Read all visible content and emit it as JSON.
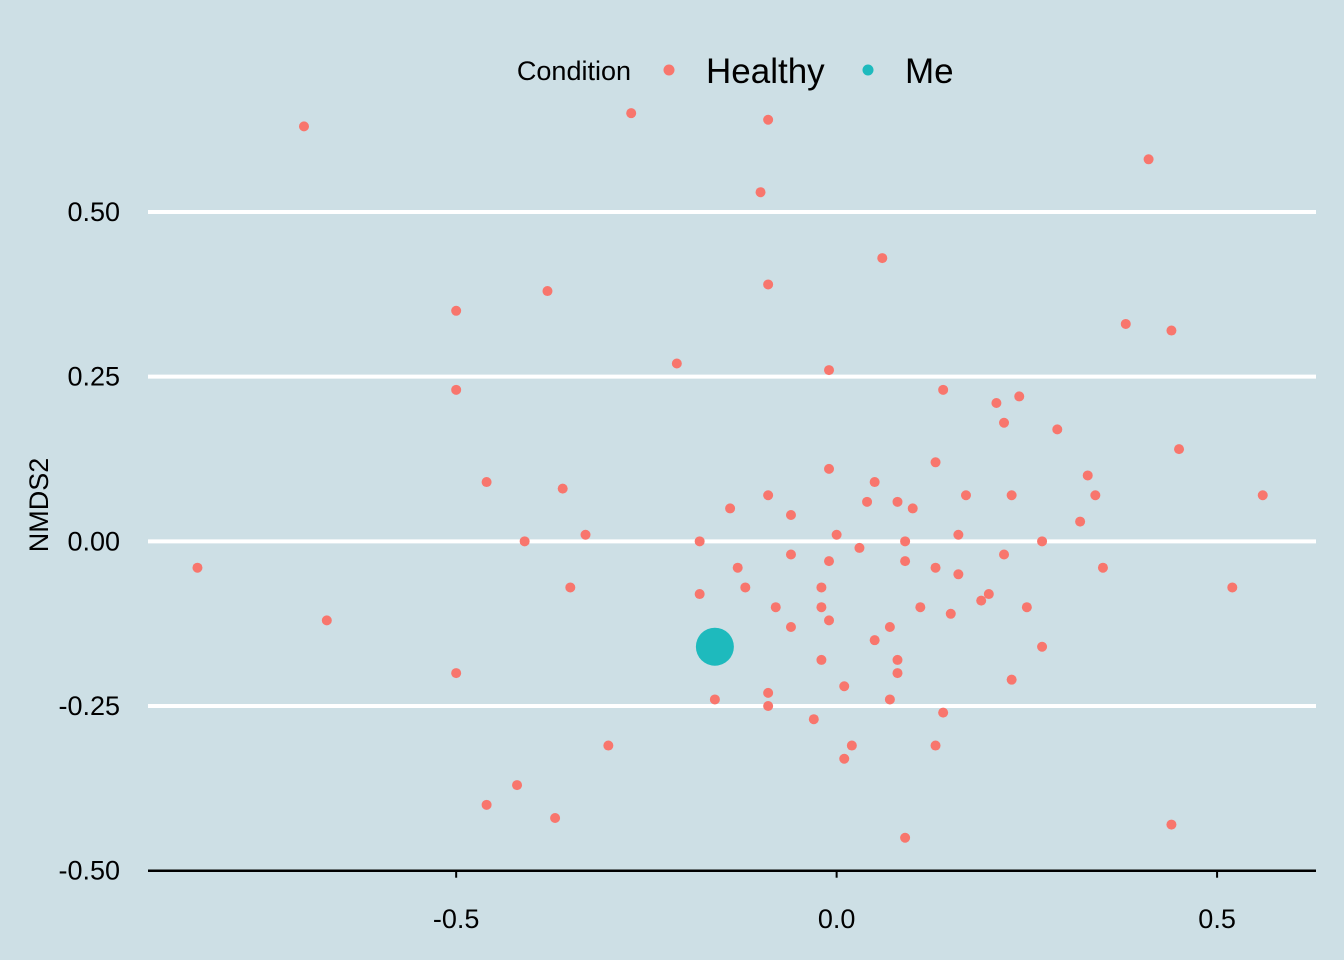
{
  "chart_data": {
    "type": "scatter",
    "title": "",
    "xlabel": "",
    "ylabel": "NMDS2",
    "xlim": [
      -0.905,
      0.63
    ],
    "ylim": [
      -0.505,
      0.67
    ],
    "x_ticks": [
      -0.5,
      0.0,
      0.5
    ],
    "x_tick_labels": [
      "-0.5",
      "0.0",
      "0.5"
    ],
    "y_ticks": [
      -0.5,
      -0.25,
      0.0,
      0.25,
      0.5
    ],
    "y_tick_labels": [
      "-0.50",
      "-0.25",
      "0.00",
      "0.25",
      "0.50"
    ],
    "grid": "horizontal-major",
    "legend": {
      "title": "Condition",
      "placement": "top"
    },
    "series": [
      {
        "name": "Healthy",
        "color": "#f8766d",
        "points": [
          [
            -0.7,
            0.63
          ],
          [
            -0.27,
            0.65
          ],
          [
            -0.09,
            0.64
          ],
          [
            -0.1,
            0.53
          ],
          [
            0.41,
            0.58
          ],
          [
            -0.09,
            0.39
          ],
          [
            0.06,
            0.43
          ],
          [
            -0.38,
            0.38
          ],
          [
            -0.5,
            0.35
          ],
          [
            0.38,
            0.33
          ],
          [
            0.44,
            0.32
          ],
          [
            -0.21,
            0.27
          ],
          [
            -0.01,
            0.26
          ],
          [
            -0.5,
            0.23
          ],
          [
            0.14,
            0.23
          ],
          [
            0.21,
            0.21
          ],
          [
            0.24,
            0.22
          ],
          [
            0.22,
            0.18
          ],
          [
            0.29,
            0.17
          ],
          [
            0.45,
            0.14
          ],
          [
            0.13,
            0.12
          ],
          [
            -0.01,
            0.11
          ],
          [
            0.33,
            0.1
          ],
          [
            -0.46,
            0.09
          ],
          [
            0.05,
            0.09
          ],
          [
            -0.36,
            0.08
          ],
          [
            -0.09,
            0.07
          ],
          [
            0.04,
            0.06
          ],
          [
            0.08,
            0.06
          ],
          [
            0.17,
            0.07
          ],
          [
            0.23,
            0.07
          ],
          [
            0.34,
            0.07
          ],
          [
            0.56,
            0.07
          ],
          [
            -0.14,
            0.05
          ],
          [
            -0.06,
            0.04
          ],
          [
            0.1,
            0.05
          ],
          [
            0.32,
            0.03
          ],
          [
            -0.33,
            0.01
          ],
          [
            0.0,
            0.01
          ],
          [
            0.16,
            0.01
          ],
          [
            -0.18,
            0.0
          ],
          [
            0.27,
            0.0
          ],
          [
            -0.41,
            0.0
          ],
          [
            0.03,
            -0.01
          ],
          [
            0.09,
            0.0
          ],
          [
            -0.06,
            -0.02
          ],
          [
            -0.01,
            -0.03
          ],
          [
            0.22,
            -0.02
          ],
          [
            0.09,
            -0.03
          ],
          [
            -0.13,
            -0.04
          ],
          [
            0.13,
            -0.04
          ],
          [
            0.35,
            -0.04
          ],
          [
            0.16,
            -0.05
          ],
          [
            0.52,
            -0.07
          ],
          [
            -0.35,
            -0.07
          ],
          [
            -0.12,
            -0.07
          ],
          [
            -0.02,
            -0.07
          ],
          [
            -0.18,
            -0.08
          ],
          [
            0.2,
            -0.08
          ],
          [
            -0.02,
            -0.1
          ],
          [
            0.19,
            -0.09
          ],
          [
            0.25,
            -0.1
          ],
          [
            -0.08,
            -0.1
          ],
          [
            0.11,
            -0.1
          ],
          [
            -0.67,
            -0.12
          ],
          [
            0.15,
            -0.11
          ],
          [
            -0.01,
            -0.12
          ],
          [
            -0.06,
            -0.13
          ],
          [
            0.07,
            -0.13
          ],
          [
            0.05,
            -0.15
          ],
          [
            0.27,
            -0.16
          ],
          [
            -0.02,
            -0.18
          ],
          [
            0.08,
            -0.18
          ],
          [
            0.08,
            -0.2
          ],
          [
            -0.5,
            -0.2
          ],
          [
            0.23,
            -0.21
          ],
          [
            0.01,
            -0.22
          ],
          [
            -0.09,
            -0.23
          ],
          [
            -0.16,
            -0.24
          ],
          [
            0.07,
            -0.24
          ],
          [
            -0.09,
            -0.25
          ],
          [
            0.14,
            -0.26
          ],
          [
            -0.03,
            -0.27
          ],
          [
            -0.3,
            -0.31
          ],
          [
            0.02,
            -0.31
          ],
          [
            0.13,
            -0.31
          ],
          [
            0.01,
            -0.33
          ],
          [
            -0.42,
            -0.37
          ],
          [
            -0.46,
            -0.4
          ],
          [
            -0.37,
            -0.42
          ],
          [
            0.44,
            -0.43
          ],
          [
            0.09,
            -0.45
          ],
          [
            -0.84,
            -0.04
          ]
        ]
      },
      {
        "name": "Me",
        "color": "#1ebabd",
        "points": [
          [
            -0.16,
            -0.16
          ]
        ]
      }
    ]
  }
}
